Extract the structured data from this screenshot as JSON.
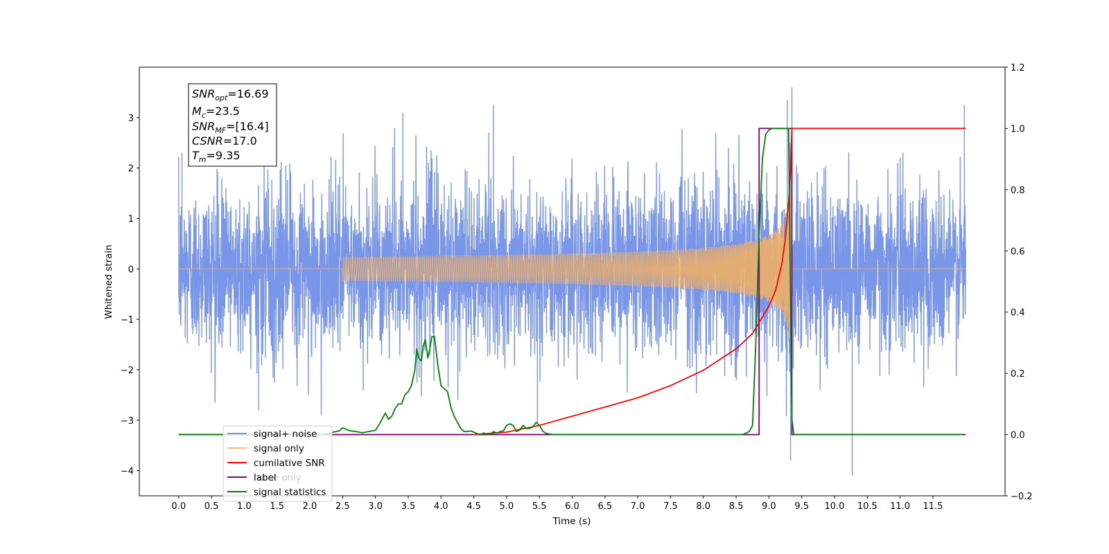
{
  "chart_data": {
    "type": "line",
    "title": "",
    "xlabel": "Time (s)",
    "ylabel": "Whitened strain",
    "ylabel_right": "",
    "xlim": [
      -0.6,
      12.6
    ],
    "ylim": [
      -4.5,
      4.0
    ],
    "ylim_right": [
      -0.2,
      1.2
    ],
    "x_ticks": [
      0.0,
      0.5,
      1.0,
      1.5,
      2.0,
      2.5,
      3.0,
      3.5,
      4.0,
      4.5,
      5.0,
      5.5,
      6.0,
      6.5,
      7.0,
      7.5,
      8.0,
      8.5,
      9.0,
      9.5,
      10.0,
      10.5,
      11.0,
      11.5
    ],
    "x_tick_labels": [
      "0.0",
      "0.5",
      "1.0",
      "1.5",
      "2.0",
      "2.5",
      "3.0",
      "3.5",
      "4.0",
      "4.5",
      "5.0",
      "5.5",
      "6.0",
      "6.5",
      "7.0",
      "7.5",
      "8.0",
      "8.5",
      "9.0",
      "9.5",
      "10.0",
      "10.5",
      "11.0",
      "11.5"
    ],
    "y_ticks": [
      3,
      2,
      1,
      0,
      -1,
      -2,
      -3,
      -4
    ],
    "y_tick_labels": [
      "3",
      "2",
      "1",
      "0",
      "−1",
      "−2",
      "−3",
      "−4"
    ],
    "y_ticks_right": [
      1.2,
      1.0,
      0.8,
      0.6,
      0.4,
      0.2,
      0.0,
      -0.2
    ],
    "y_tick_labels_right": [
      "1.2",
      "1.0",
      "0.8",
      "0.6",
      "0.4",
      "0.2",
      "0.0",
      "−0.2"
    ],
    "grid": false,
    "legend_position": "lower-left",
    "info_box": {
      "snr_opt": {
        "symbol": "SNR",
        "sub": "opt",
        "value": "=16.69"
      },
      "mc": {
        "symbol": "M",
        "sub": "c",
        "value": "=23.5"
      },
      "snr_mf": {
        "symbol": "SNR",
        "sub": "MF",
        "value": "=[16.4]"
      },
      "csnr": {
        "symbol": "CSNR",
        "value": "=17.0"
      },
      "tm": {
        "symbol": "T",
        "sub": "m",
        "value": "=9.35"
      }
    },
    "series": [
      {
        "name": "signal+ noise",
        "color": "#7a96e8",
        "axis": "left",
        "x_range": [
          0.0,
          12.0
        ],
        "approx_std": 0.8,
        "spikes": [
          [
            0.05,
            2.3
          ],
          [
            1.22,
            -2.8
          ],
          [
            3.42,
            3.1
          ],
          [
            4.8,
            3.25
          ],
          [
            5.47,
            -3.05
          ],
          [
            9.28,
            3.35
          ],
          [
            9.33,
            -3.8
          ],
          [
            9.35,
            3.6
          ],
          [
            10.27,
            -4.1
          ],
          [
            11.98,
            3.25
          ]
        ]
      },
      {
        "name": "signal only",
        "color": "#f5b060",
        "axis": "left",
        "chirp_start": 2.5,
        "merger_time": 9.35,
        "peak_amplitude": 1.6
      },
      {
        "name": "cumilative SNR",
        "color": "#ff0000",
        "axis": "right",
        "x": [
          4.5,
          5.0,
          5.5,
          6.0,
          6.5,
          7.0,
          7.5,
          8.0,
          8.5,
          8.75,
          9.0,
          9.1,
          9.2,
          9.25,
          9.3,
          9.33,
          9.35,
          12.0
        ],
        "y": [
          0.0,
          0.008,
          0.03,
          0.06,
          0.09,
          0.12,
          0.16,
          0.21,
          0.28,
          0.33,
          0.42,
          0.47,
          0.56,
          0.64,
          0.76,
          0.86,
          1.0,
          1.0
        ]
      },
      {
        "name": "label",
        "color": "#800080",
        "axis": "right",
        "x": [
          0.0,
          8.85,
          8.85,
          9.35,
          9.35,
          12.0
        ],
        "y": [
          0.0,
          0.0,
          1.0,
          1.0,
          0.0,
          0.0
        ]
      },
      {
        "name": "noise only",
        "color": "#d3d3d3",
        "axis": "left"
      },
      {
        "name": "signal statistics",
        "color": "#008000",
        "axis": "right",
        "x": [
          0.0,
          2.2,
          2.3,
          2.4,
          2.45,
          2.5,
          2.6,
          2.7,
          2.8,
          2.9,
          3.0,
          3.05,
          3.1,
          3.15,
          3.2,
          3.25,
          3.3,
          3.35,
          3.4,
          3.45,
          3.5,
          3.55,
          3.6,
          3.63,
          3.66,
          3.7,
          3.73,
          3.76,
          3.8,
          3.83,
          3.86,
          3.9,
          3.95,
          4.0,
          4.05,
          4.1,
          4.15,
          4.2,
          4.25,
          4.3,
          4.35,
          4.4,
          4.45,
          4.5,
          4.55,
          4.6,
          4.65,
          4.7,
          4.75,
          4.8,
          4.85,
          4.9,
          4.95,
          5.0,
          5.05,
          5.1,
          5.15,
          5.2,
          5.25,
          5.3,
          5.35,
          5.4,
          5.45,
          5.5,
          5.55,
          5.6,
          5.7,
          5.8,
          8.6,
          8.7,
          8.75,
          8.8,
          8.85,
          8.9,
          8.95,
          9.0,
          9.05,
          9.1,
          9.3,
          9.35,
          9.38,
          11.95
        ],
        "y": [
          0.0,
          0.0,
          0.005,
          0.01,
          0.012,
          0.022,
          0.013,
          0.01,
          0.006,
          0.01,
          0.014,
          0.03,
          0.05,
          0.07,
          0.05,
          0.06,
          0.085,
          0.1,
          0.1,
          0.13,
          0.14,
          0.16,
          0.21,
          0.28,
          0.25,
          0.24,
          0.29,
          0.31,
          0.25,
          0.28,
          0.32,
          0.32,
          0.23,
          0.16,
          0.15,
          0.14,
          0.09,
          0.06,
          0.04,
          0.02,
          0.01,
          0.01,
          0.012,
          0.008,
          0.003,
          0.0,
          0.005,
          0.002,
          0.0,
          0.01,
          0.005,
          0.01,
          0.012,
          0.03,
          0.035,
          0.03,
          0.01,
          0.015,
          0.03,
          0.02,
          0.02,
          0.025,
          0.04,
          0.03,
          0.012,
          0.004,
          0.0,
          0.0,
          0.0,
          0.01,
          0.03,
          0.3,
          0.65,
          0.9,
          0.98,
          0.995,
          1.0,
          1.0,
          1.0,
          0.05,
          0.0,
          0.0
        ]
      }
    ],
    "legend_items": [
      "signal+ noise",
      "signal only",
      "cumilative SNR",
      "label",
      "noise only",
      "signal statistics"
    ]
  }
}
